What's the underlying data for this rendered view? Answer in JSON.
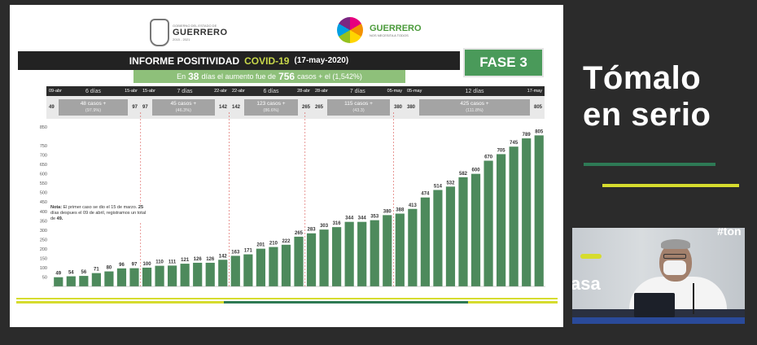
{
  "header": {
    "left_logo_small": "GOBIERNO DEL ESTADO DE",
    "left_logo_name": "GUERRERO",
    "left_logo_years": "2015 - 2021",
    "right_logo_name": "GUERRERO",
    "right_logo_tagline": "NOS NECESITA A TODOS"
  },
  "report": {
    "title_prefix": "INFORME POSITIVIDAD",
    "title_highlight": "COVID-19",
    "title_date": "(17-may-2020)",
    "phase": "FASE 3",
    "subtitle_pre": "En",
    "subtitle_days": "38",
    "subtitle_mid": "días el aumento fue de",
    "subtitle_cases": "756",
    "subtitle_post": "casos  +  el  (1,542%)"
  },
  "periods": [
    {
      "start_date": "09-abr",
      "days": "6 días",
      "end_date": "15-abr",
      "start_val": "49",
      "increase": "48 casos +",
      "pct": "(97.9%)",
      "end_val": "97"
    },
    {
      "start_date": "15-abr",
      "days": "7 días",
      "end_date": "22-abr",
      "start_val": "97",
      "increase": "45 casos +",
      "pct": "(46.3%)",
      "end_val": "142"
    },
    {
      "start_date": "22-abr",
      "days": "6 días",
      "end_date": "28-abr",
      "start_val": "142",
      "increase": "123 casos +",
      "pct": "(86.6%)",
      "end_val": "265"
    },
    {
      "start_date": "28-abr",
      "days": "7 días",
      "end_date": "05-may",
      "start_val": "265",
      "increase": "115 casos +",
      "pct": "(43.3)",
      "end_val": "380"
    },
    {
      "start_date": "05-may",
      "days": "12 días",
      "end_date": "17-may",
      "start_val": "380",
      "increase": "425 casos +",
      "pct": "(111.8%)",
      "end_val": "805"
    }
  ],
  "note": {
    "label": "Nota:",
    "text1": "El primer caso se dio el 15 de marzo.",
    "bold_days": "25",
    "text2": "días despues el 09 de abril, registramos un total de",
    "bold_total": "49."
  },
  "chart_data": {
    "type": "bar",
    "values": [
      49,
      54,
      56,
      71,
      80,
      96,
      97,
      100,
      110,
      111,
      121,
      126,
      126,
      142,
      163,
      171,
      201,
      210,
      222,
      265,
      283,
      303,
      316,
      344,
      344,
      353,
      380,
      388,
      413,
      474,
      514,
      532,
      582,
      600,
      670,
      705,
      745,
      789,
      805
    ],
    "y_ticks": [
      "50",
      "100",
      "150",
      "200",
      "250",
      "300",
      "350",
      "400",
      "450",
      "500",
      "550",
      "600",
      "650",
      "700",
      "750",
      "850"
    ],
    "ylim": [
      0,
      850
    ],
    "period_boundaries_index": [
      6.5,
      13.5,
      19.5,
      26.5
    ],
    "bar_color": "#4d8a5c",
    "grid": false
  },
  "side": {
    "line1": "Tómalo",
    "line2": "en serio"
  },
  "video": {
    "wall_text_top": "#ton",
    "wall_text_left": "asa"
  },
  "colors": {
    "dark": "#222222",
    "phase_green": "#4a9a5a",
    "subtitle_green": "#8ec07a",
    "title_highlight": "#c8d84a",
    "stripe_green": "#2e7a55",
    "stripe_yellow": "#d6dc2e"
  }
}
